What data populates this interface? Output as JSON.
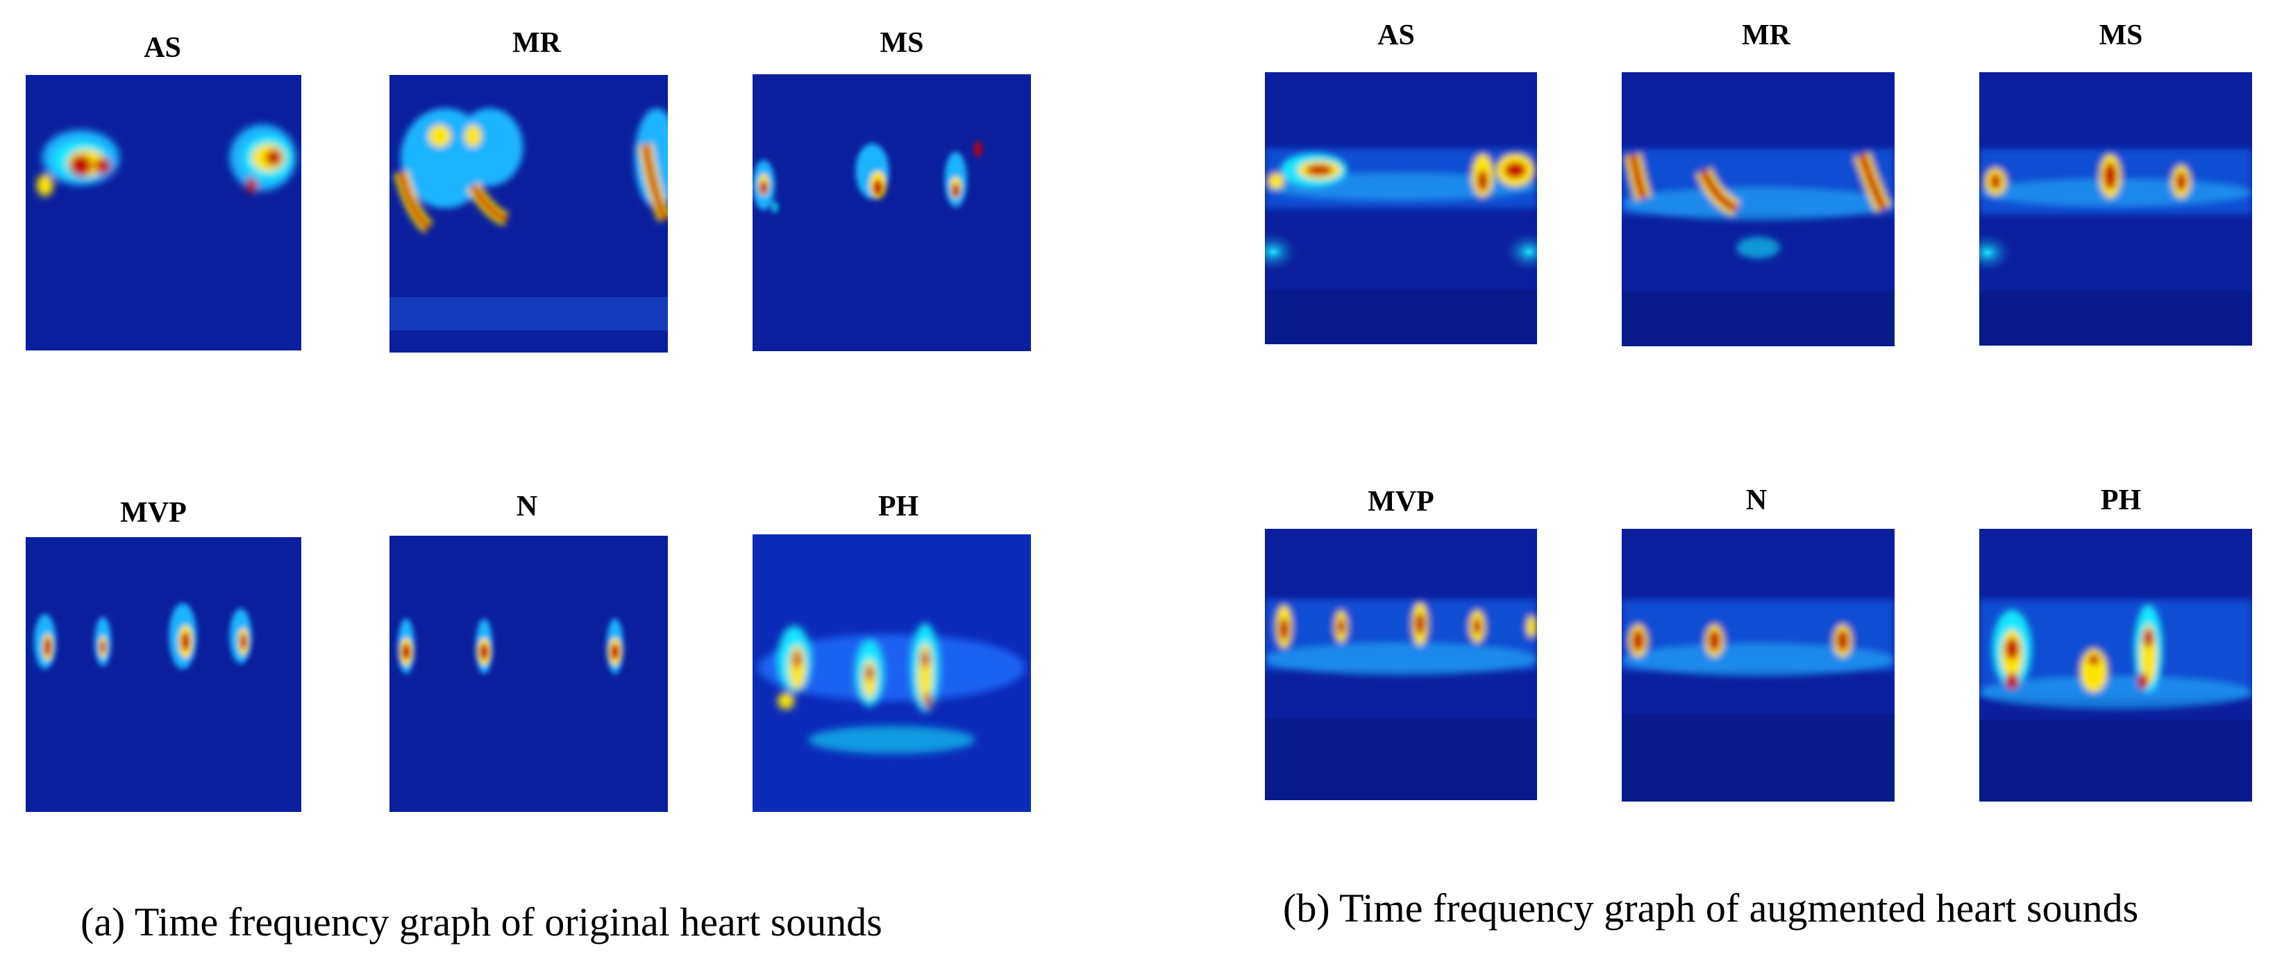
{
  "figure": {
    "original": {
      "caption": "(a) Time frequency graph of original heart sounds",
      "tiles": [
        {
          "label": "AS"
        },
        {
          "label": "MR"
        },
        {
          "label": "MS"
        },
        {
          "label": "MVP"
        },
        {
          "label": "N"
        },
        {
          "label": "PH"
        }
      ]
    },
    "augmented": {
      "caption": "(b) Time frequency graph of augmented  heart sounds",
      "tiles": [
        {
          "label": "AS"
        },
        {
          "label": "MR"
        },
        {
          "label": "MS"
        },
        {
          "label": "MVP"
        },
        {
          "label": "N"
        },
        {
          "label": "PH"
        }
      ]
    },
    "colors": {
      "background_blue": "#0a1f9e",
      "cyan": "#19e6ff",
      "yellow": "#ffe600",
      "red": "#c40000"
    }
  }
}
